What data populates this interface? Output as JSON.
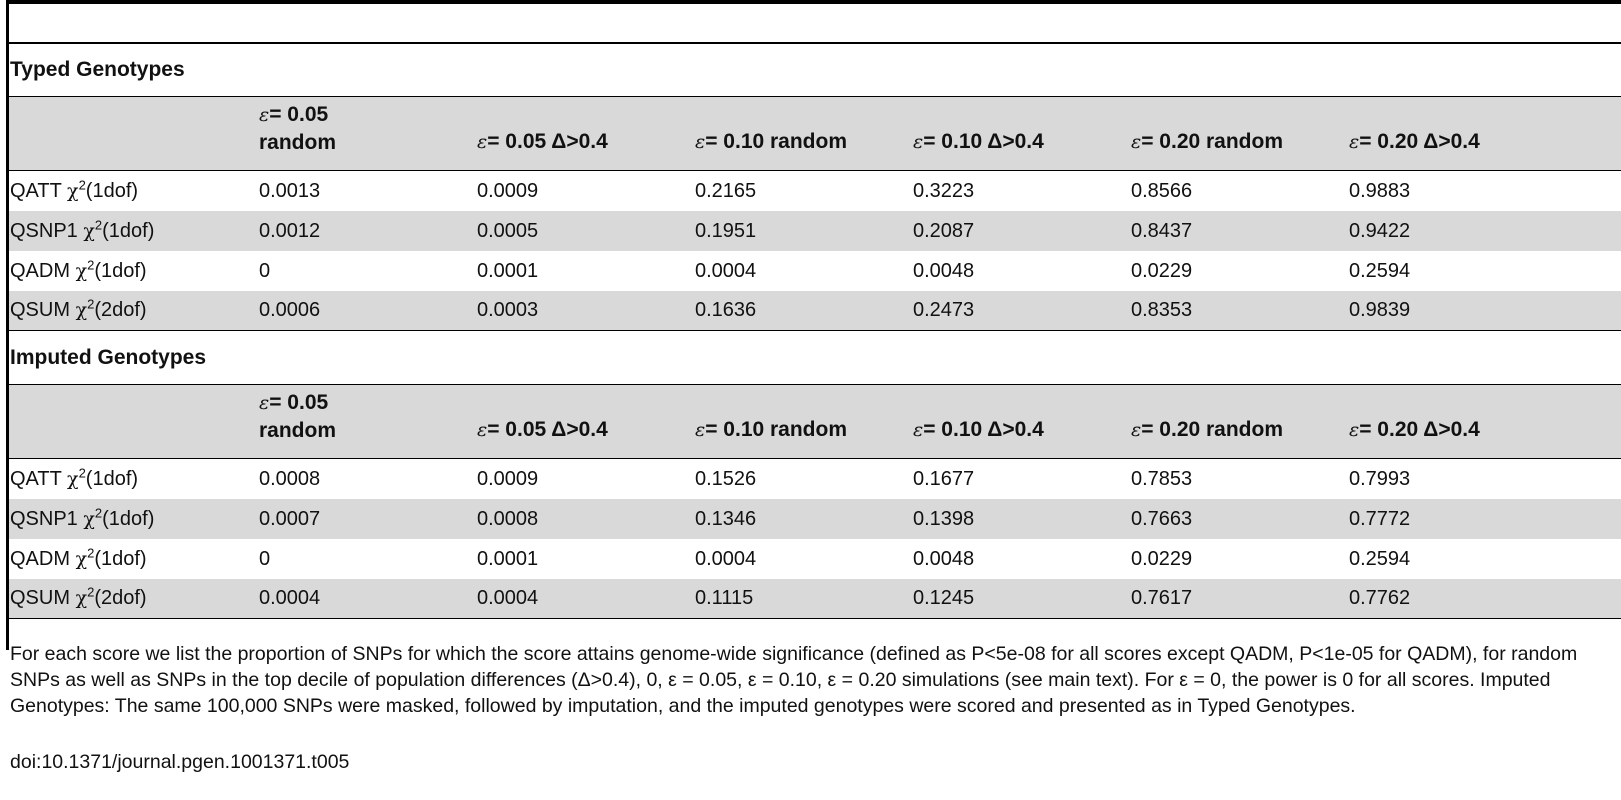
{
  "sections": [
    {
      "title": "Typed Genotypes",
      "header_labels": [
        "",
        "= 0.05 random",
        "= 0.05 Δ>0.4",
        "= 0.10 random",
        "= 0.10 Δ>0.4",
        "= 0.20 random",
        "= 0.20 Δ>0.4"
      ],
      "rows": [
        {
          "label_prefix": "QATT",
          "label_chi": "χ",
          "label_sup": "2",
          "label_suffix": "(1dof)",
          "values": [
            "0.0013",
            "0.0009",
            "0.2165",
            "0.3223",
            "0.8566",
            "0.9883"
          ]
        },
        {
          "label_prefix": "QSNP1",
          "label_chi": "χ",
          "label_sup": "2",
          "label_suffix": "(1dof)",
          "values": [
            "0.0012",
            "0.0005",
            "0.1951",
            "0.2087",
            "0.8437",
            "0.9422"
          ]
        },
        {
          "label_prefix": "QADM",
          "label_chi": "χ",
          "label_sup": "2",
          "label_suffix": "(1dof)",
          "values": [
            "0",
            "0.0001",
            "0.0004",
            "0.0048",
            "0.0229",
            "0.2594"
          ]
        },
        {
          "label_prefix": "QSUM",
          "label_chi": "χ",
          "label_sup": "2",
          "label_suffix": "(2dof)",
          "values": [
            "0.0006",
            "0.0003",
            "0.1636",
            "0.2473",
            "0.8353",
            "0.9839"
          ]
        }
      ]
    },
    {
      "title": "Imputed Genotypes",
      "header_labels": [
        "",
        "= 0.05 random",
        "= 0.05 Δ>0.4",
        "= 0.10 random",
        "= 0.10 Δ>0.4",
        "= 0.20 random",
        "= 0.20 Δ>0.4"
      ],
      "rows": [
        {
          "label_prefix": "QATT",
          "label_chi": "χ",
          "label_sup": "2",
          "label_suffix": "(1dof)",
          "values": [
            "0.0008",
            "0.0009",
            "0.1526",
            "0.1677",
            "0.7853",
            "0.7993"
          ]
        },
        {
          "label_prefix": "QSNP1",
          "label_chi": "χ",
          "label_sup": "2",
          "label_suffix": "(1dof)",
          "values": [
            "0.0007",
            "0.0008",
            "0.1346",
            "0.1398",
            "0.7663",
            "0.7772"
          ]
        },
        {
          "label_prefix": "QADM",
          "label_chi": "χ",
          "label_sup": "2",
          "label_suffix": "(1dof)",
          "values": [
            "0",
            "0.0001",
            "0.0004",
            "0.0048",
            "0.0229",
            "0.2594"
          ]
        },
        {
          "label_prefix": "QSUM",
          "label_chi": "χ",
          "label_sup": "2",
          "label_suffix": "(2dof)",
          "values": [
            "0.0004",
            "0.0004",
            "0.1115",
            "0.1245",
            "0.7617",
            "0.7762"
          ]
        }
      ]
    }
  ],
  "header_parts": {
    "eps": "ε",
    "c1_a": "= 0.05",
    "c1_b": "random",
    "c2": "= 0.05 Δ>0.4",
    "c3": "= 0.10 random",
    "c4": "= 0.10 Δ>0.4",
    "c5": "= 0.20 random",
    "c6": "= 0.20 Δ>0.4"
  },
  "footnote": "For each score we list the proportion of SNPs for which the score attains genome-wide significance (defined as P<5e-08 for all scores except QADM, P<1e-05 for QADM), for random SNPs as well as SNPs in the top decile of population differences (Δ>0.4), 0, ε = 0.05, ε = 0.10, ε = 0.20 simulations (see main text). For ε = 0, the power is 0 for all scores. Imputed Genotypes: The same 100,000 SNPs were masked, followed by imputation, and the imputed genotypes were scored and presented as in Typed Genotypes.",
  "doi": "doi:10.1371/journal.pgen.1001371.t005"
}
